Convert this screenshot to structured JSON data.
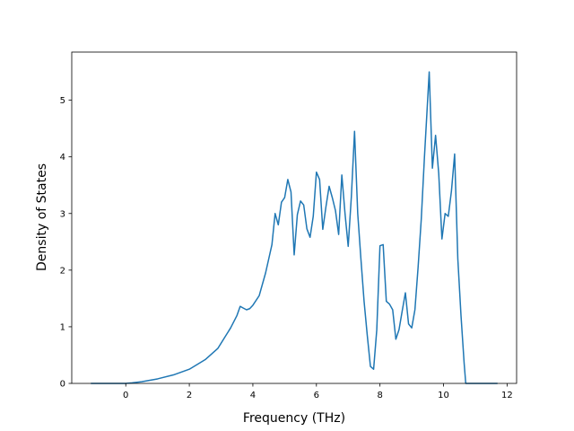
{
  "chart_data": {
    "type": "line",
    "title": "",
    "xlabel": "Frequency (THz)",
    "ylabel": "Density of States",
    "xlim": [
      -1.7,
      12.3
    ],
    "ylim": [
      0,
      5.85
    ],
    "xticks": [
      0,
      2,
      4,
      6,
      8,
      10,
      12
    ],
    "yticks": [
      0,
      1,
      2,
      3,
      4,
      5
    ],
    "grid": false,
    "line_color": "#1f77b4",
    "series": [
      {
        "x": [
          -1.1,
          -0.5,
          0.0,
          0.2,
          0.5,
          1.0,
          1.5,
          2.0,
          2.5,
          2.9,
          3.1,
          3.3,
          3.5,
          3.6,
          3.7,
          3.8,
          3.9,
          4.0,
          4.2,
          4.4,
          4.5,
          4.6,
          4.7,
          4.8,
          4.9,
          5.0,
          5.1,
          5.2,
          5.3,
          5.4,
          5.5,
          5.6,
          5.7,
          5.8,
          5.9,
          6.0,
          6.1,
          6.2,
          6.3,
          6.4,
          6.5,
          6.6,
          6.7,
          6.8,
          6.9,
          7.0,
          7.1,
          7.2,
          7.3,
          7.4,
          7.5,
          7.6,
          7.7,
          7.8,
          7.9,
          8.0,
          8.1,
          8.2,
          8.3,
          8.4,
          8.5,
          8.6,
          8.7,
          8.8,
          8.9,
          9.0,
          9.1,
          9.2,
          9.3,
          9.4,
          9.55,
          9.65,
          9.75,
          9.85,
          9.95,
          10.05,
          10.15,
          10.25,
          10.35,
          10.45,
          10.55,
          10.65,
          10.7,
          11.0,
          11.5,
          11.7
        ],
        "y": [
          0,
          0,
          0,
          0.01,
          0.03,
          0.08,
          0.15,
          0.25,
          0.42,
          0.62,
          0.8,
          0.98,
          1.2,
          1.36,
          1.33,
          1.3,
          1.32,
          1.38,
          1.55,
          1.95,
          2.2,
          2.45,
          3.0,
          2.8,
          3.2,
          3.28,
          3.6,
          3.38,
          2.27,
          2.98,
          3.22,
          3.15,
          2.73,
          2.58,
          2.95,
          3.73,
          3.6,
          2.72,
          3.12,
          3.48,
          3.28,
          3.05,
          2.63,
          3.68,
          3.0,
          2.42,
          3.3,
          4.45,
          3.0,
          2.2,
          1.45,
          0.85,
          0.3,
          0.25,
          0.95,
          2.43,
          2.45,
          1.45,
          1.4,
          1.3,
          0.78,
          0.95,
          1.28,
          1.6,
          1.05,
          0.98,
          1.3,
          2.05,
          2.9,
          4.0,
          5.5,
          3.8,
          4.38,
          3.7,
          2.55,
          3.0,
          2.95,
          3.4,
          4.05,
          2.2,
          1.2,
          0.35,
          0,
          0,
          0,
          0
        ]
      }
    ]
  }
}
